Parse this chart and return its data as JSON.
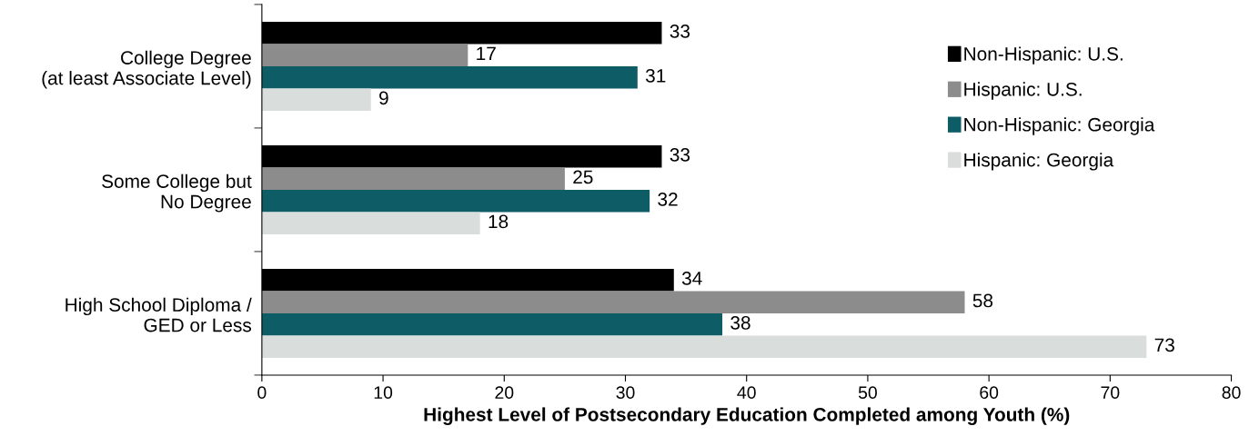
{
  "chart_data": {
    "type": "bar",
    "orientation": "horizontal",
    "xlabel": "Highest Level of Postsecondary Education Completed among Youth (%)",
    "categories": [
      "College Degree\n(at least Associate Level)",
      "Some College but\nNo Degree",
      "High School Diploma /\nGED or Less"
    ],
    "series": [
      {
        "name": "Non-Hispanic: U.S.",
        "color": "#000000",
        "values": [
          33,
          33,
          34
        ]
      },
      {
        "name": "Hispanic: U.S.",
        "color": "#8c8c8c",
        "values": [
          17,
          25,
          58
        ]
      },
      {
        "name": "Non-Hispanic: Georgia",
        "color": "#0d5c66",
        "values": [
          31,
          32,
          38
        ]
      },
      {
        "name": "Hispanic: Georgia",
        "color": "#d9dedd",
        "values": [
          9,
          18,
          73
        ]
      }
    ],
    "xlim": [
      0,
      80
    ],
    "xticks": [
      0,
      10,
      20,
      30,
      40,
      50,
      60,
      70,
      80
    ],
    "data_labels": true,
    "grid": false,
    "legend": "right"
  }
}
